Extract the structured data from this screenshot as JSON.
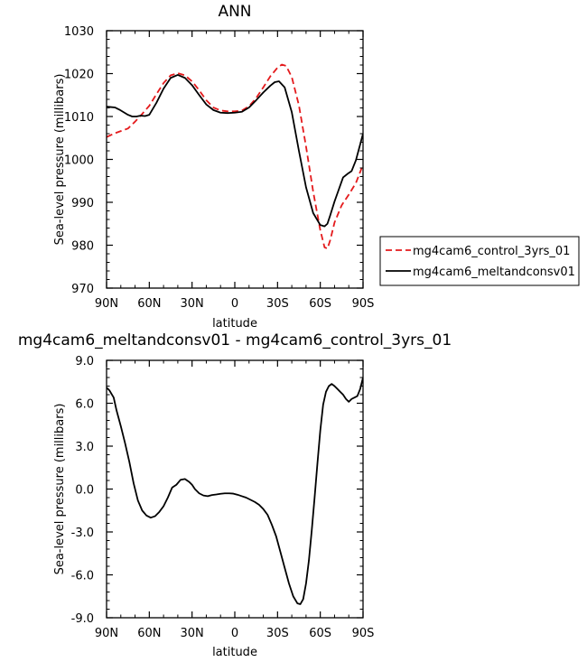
{
  "chart_data": [
    {
      "type": "line",
      "title": "ANN",
      "xlabel": "latitude",
      "ylabel": "Sea-level pressure (millibars)",
      "xlim": [
        -90,
        90
      ],
      "ylim": [
        970,
        1030
      ],
      "x_ticks": [
        {
          "v": -90,
          "label": "90N"
        },
        {
          "v": -60,
          "label": "60N"
        },
        {
          "v": -30,
          "label": "30N"
        },
        {
          "v": 0,
          "label": "0"
        },
        {
          "v": 30,
          "label": "30S"
        },
        {
          "v": 60,
          "label": "60S"
        },
        {
          "v": 90,
          "label": "90S"
        }
      ],
      "y_ticks": [
        "970",
        "980",
        "990",
        "1000",
        "1010",
        "1020",
        "1030"
      ],
      "legend_position": "right",
      "series": [
        {
          "name": "mg4cam6_control_3yrs_01",
          "color": "#e41a1c",
          "dash": "dashed",
          "x": [
            -90,
            -85,
            -80,
            -75,
            -70,
            -65,
            -60,
            -55,
            -50,
            -45,
            -40,
            -35,
            -30,
            -25,
            -20,
            -15,
            -10,
            -5,
            0,
            5,
            10,
            15,
            20,
            25,
            30,
            33,
            36,
            40,
            45,
            50,
            55,
            60,
            63,
            65,
            67,
            70,
            75,
            80,
            85,
            90
          ],
          "y": [
            1005.2,
            1006.0,
            1006.6,
            1007.2,
            1008.8,
            1010.6,
            1012.5,
            1015.2,
            1017.8,
            1019.6,
            1020.1,
            1019.6,
            1018.2,
            1016.1,
            1013.8,
            1012.1,
            1011.4,
            1011.2,
            1011.2,
            1011.4,
            1012.4,
            1014.3,
            1016.8,
            1019.4,
            1021.4,
            1022.1,
            1021.8,
            1019.2,
            1012.6,
            1003.0,
            992.5,
            983.5,
            979.5,
            979.2,
            981.2,
            985.3,
            989.3,
            991.8,
            994.5,
            998.8
          ]
        },
        {
          "name": "mg4cam6_meltandconsv01",
          "color": "#000000",
          "dash": "solid",
          "x": [
            -90,
            -87,
            -84,
            -81,
            -78,
            -75,
            -72,
            -69,
            -66,
            -63,
            -60,
            -55,
            -50,
            -45,
            -40,
            -35,
            -30,
            -25,
            -20,
            -15,
            -10,
            -5,
            0,
            5,
            10,
            15,
            20,
            25,
            28,
            31,
            35,
            40,
            45,
            50,
            55,
            60,
            63,
            65,
            67,
            70,
            73,
            76,
            79,
            82,
            85,
            88,
            90
          ],
          "y": [
            1012.3,
            1012.2,
            1012.1,
            1011.6,
            1011.0,
            1010.4,
            1010.0,
            1010.0,
            1010.2,
            1010.1,
            1010.4,
            1013.2,
            1016.5,
            1019.0,
            1019.7,
            1019.0,
            1017.3,
            1015.0,
            1012.8,
            1011.5,
            1010.9,
            1010.8,
            1010.9,
            1011.1,
            1012.1,
            1013.8,
            1015.6,
            1017.2,
            1018.0,
            1018.2,
            1016.8,
            1011.0,
            1002.0,
            993.5,
            987.5,
            984.7,
            984.4,
            985.0,
            987.0,
            990.2,
            993.0,
            995.8,
            996.6,
            997.3,
            999.8,
            1003.5,
            1006.0
          ]
        }
      ]
    },
    {
      "type": "line",
      "title": "mg4cam6_meltandconsv01 - mg4cam6_control_3yrs_01",
      "xlabel": "latitude",
      "ylabel": "Sea-level pressure (millibars)",
      "xlim": [
        -90,
        90
      ],
      "ylim": [
        -9,
        9
      ],
      "x_ticks": [
        {
          "v": -90,
          "label": "90N"
        },
        {
          "v": -60,
          "label": "60N"
        },
        {
          "v": -30,
          "label": "30N"
        },
        {
          "v": 0,
          "label": "0"
        },
        {
          "v": 30,
          "label": "30S"
        },
        {
          "v": 60,
          "label": "60S"
        },
        {
          "v": 90,
          "label": "90S"
        }
      ],
      "y_ticks": [
        "-9.0",
        "-6.0",
        "-3.0",
        "0.0",
        "3.0",
        "6.0",
        "9.0"
      ],
      "series": [
        {
          "color": "#000000",
          "dash": "solid",
          "x": [
            -90,
            -88,
            -85,
            -83,
            -80,
            -77,
            -74,
            -71,
            -68,
            -65,
            -62,
            -59,
            -56,
            -53,
            -50,
            -47,
            -44,
            -41,
            -38,
            -35,
            -32,
            -30,
            -28,
            -25,
            -22,
            -19,
            -16,
            -13,
            -10,
            -7,
            -4,
            -1,
            2,
            5,
            8,
            11,
            14,
            17,
            20,
            23,
            26,
            29,
            32,
            35,
            38,
            41,
            44,
            46,
            48,
            50,
            52,
            54,
            56,
            58,
            60,
            62,
            64,
            66,
            68,
            70,
            72,
            74,
            76,
            78,
            80,
            82,
            84,
            86,
            88,
            90
          ],
          "y": [
            7.1,
            6.9,
            6.4,
            5.5,
            4.4,
            3.2,
            1.9,
            0.4,
            -0.8,
            -1.5,
            -1.85,
            -2.0,
            -1.9,
            -1.6,
            -1.2,
            -0.6,
            0.1,
            0.3,
            0.65,
            0.7,
            0.5,
            0.3,
            0.0,
            -0.3,
            -0.45,
            -0.5,
            -0.42,
            -0.38,
            -0.33,
            -0.3,
            -0.3,
            -0.32,
            -0.4,
            -0.5,
            -0.6,
            -0.75,
            -0.9,
            -1.1,
            -1.4,
            -1.8,
            -2.5,
            -3.3,
            -4.4,
            -5.5,
            -6.6,
            -7.5,
            -8.0,
            -8.05,
            -7.7,
            -6.6,
            -5.0,
            -2.9,
            -0.6,
            1.8,
            4.1,
            5.9,
            6.8,
            7.2,
            7.35,
            7.2,
            7.0,
            6.8,
            6.6,
            6.3,
            6.1,
            6.3,
            6.4,
            6.5,
            7.0,
            7.8
          ]
        }
      ]
    }
  ]
}
